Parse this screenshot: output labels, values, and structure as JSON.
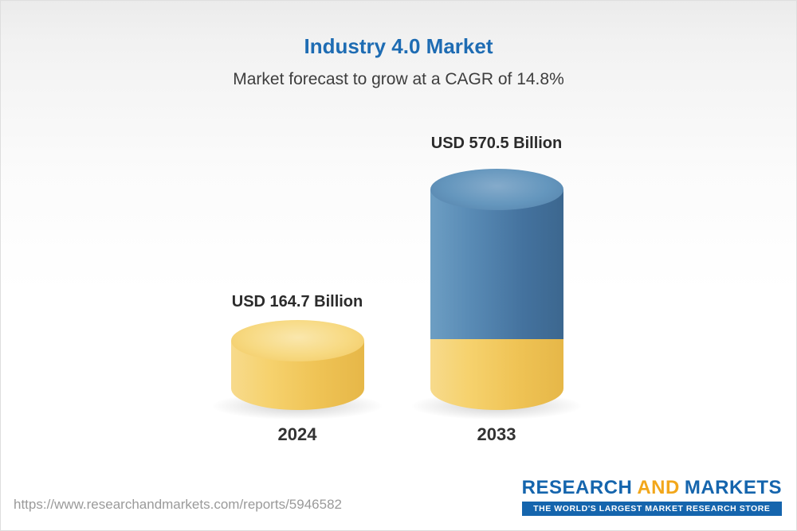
{
  "title": "Industry 4.0 Market",
  "subtitle": "Market forecast to grow at a CAGR of 14.8%",
  "chart_data": {
    "type": "bar",
    "categories": [
      "2024",
      "2033"
    ],
    "values": [
      164.7,
      570.5
    ],
    "unit": "USD Billion",
    "value_labels": [
      "USD 164.7 Billion",
      "USD 570.5 Billion"
    ],
    "title": "Industry 4.0 Market",
    "subtitle": "Market forecast to grow at a CAGR of 14.8%",
    "cagr": "14.8%",
    "legend": "none",
    "grid": false,
    "colors": {
      "bar_2024": "#f0c75f",
      "bar_2033_top_segment": "#4a7ba6",
      "bar_2033_base_segment": "#f0c75f",
      "title_color": "#1e6cb3"
    }
  },
  "footer": {
    "url": "https://www.researchandmarkets.com/reports/5946582",
    "logo": {
      "research": "RESEARCH",
      "and": "AND",
      "markets": "MARKETS",
      "tagline": "THE WORLD'S LARGEST MARKET RESEARCH STORE"
    }
  }
}
